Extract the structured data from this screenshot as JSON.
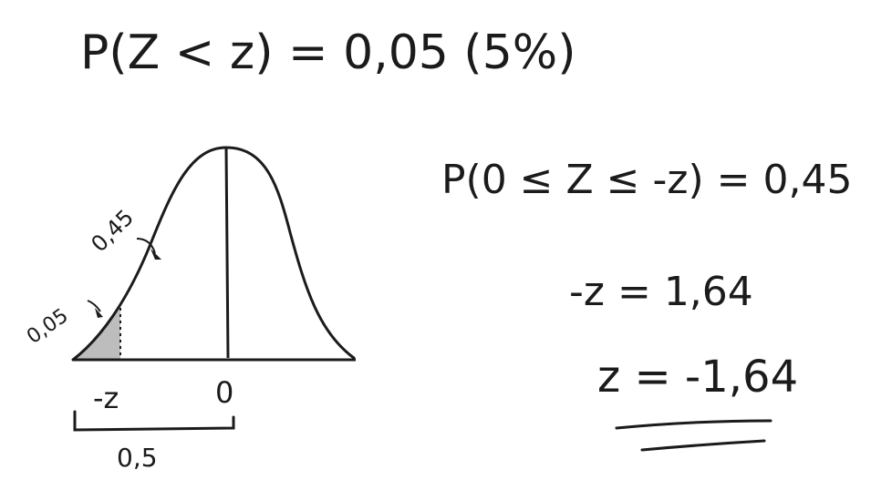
{
  "colors": {
    "ink": "#1b1b1b",
    "shade": "#bdbdbd",
    "paper": "#ffffff"
  },
  "title_equation": "P(Z < z) = 0,05 (5%)",
  "right_equations": {
    "line1": "P(0 ≤ Z ≤ -z) = 0,45",
    "line2": "-z = 1,64",
    "line3": "z = -1,64"
  },
  "diagram": {
    "label_045": "0,45",
    "label_005": "0,05",
    "tick_neg_z": "-z",
    "tick_zero": "0",
    "bracket_label": "0,5"
  }
}
